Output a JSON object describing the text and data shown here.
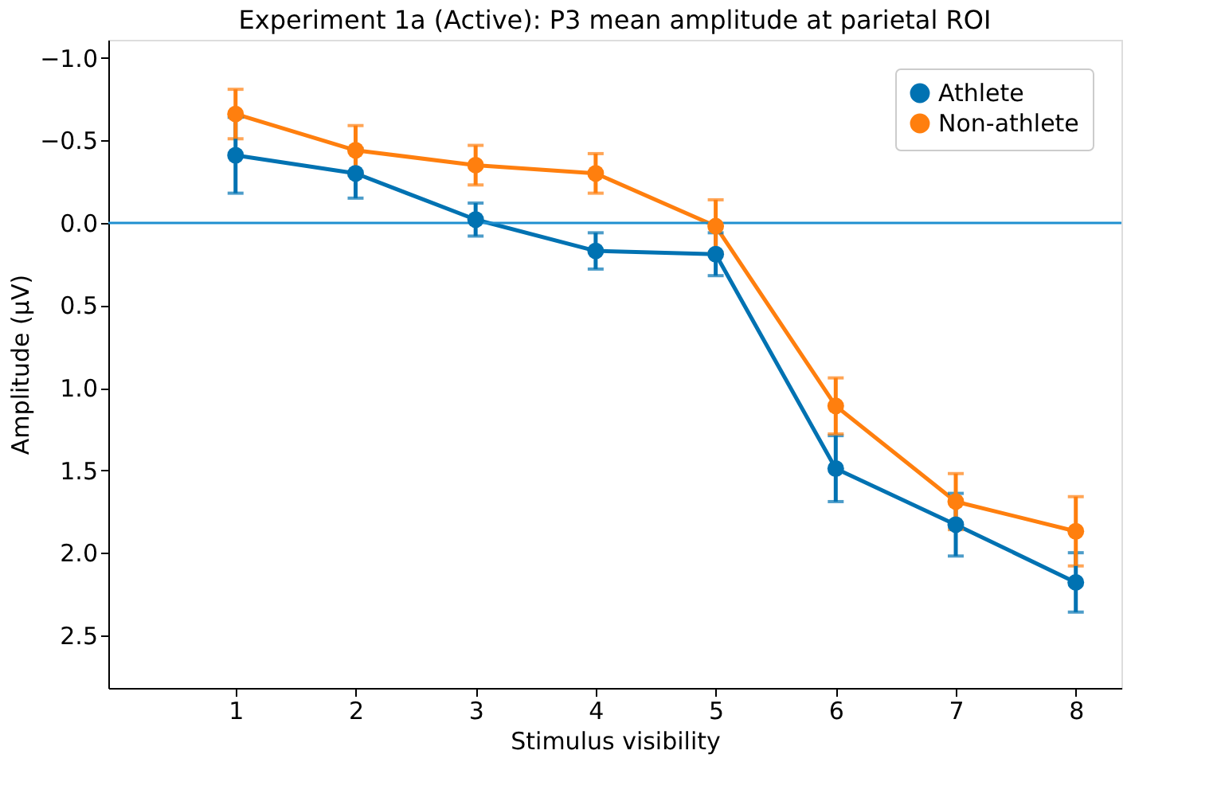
{
  "chart_data": {
    "type": "line",
    "title": "Experiment 1a (Active): P3 mean amplitude at parietal ROI",
    "xlabel": "Stimulus visibility",
    "ylabel": "Amplitude (µV)",
    "x": [
      1,
      2,
      3,
      4,
      5,
      6,
      7,
      8
    ],
    "series": [
      {
        "name": "Athlete",
        "color": "#0072b2",
        "values": [
          -0.41,
          -0.3,
          -0.02,
          0.17,
          0.19,
          1.49,
          1.83,
          2.18
        ],
        "errors": [
          0.23,
          0.15,
          0.1,
          0.11,
          0.13,
          0.2,
          0.19,
          0.18
        ]
      },
      {
        "name": "Non-athlete",
        "color": "#ff7f0e",
        "values": [
          -0.66,
          -0.44,
          -0.35,
          -0.3,
          0.02,
          1.11,
          1.69,
          1.87
        ],
        "errors": [
          0.15,
          0.15,
          0.12,
          0.12,
          0.16,
          0.17,
          0.17,
          0.21
        ]
      }
    ],
    "xlim": [
      -0.06,
      8.38
    ],
    "xticks": [
      1,
      2,
      3,
      4,
      5,
      6,
      7,
      8
    ],
    "ylim": [
      2.82,
      -1.11
    ],
    "yticks": [
      {
        "value": -1,
        "label": "−1.0"
      },
      {
        "value": -0.5,
        "label": "−0.5"
      },
      {
        "value": 0,
        "label": "0.0"
      },
      0.5,
      {
        "value": 1,
        "label": "1.0"
      },
      1.5,
      {
        "value": 2,
        "label": "2.0"
      },
      2.5
    ],
    "ref_lines": [
      {
        "axis": "y",
        "value": 0,
        "color": "#1f8fd0"
      }
    ],
    "marker": "circle",
    "line_style": "solid",
    "grid": false,
    "legend": "top right"
  }
}
